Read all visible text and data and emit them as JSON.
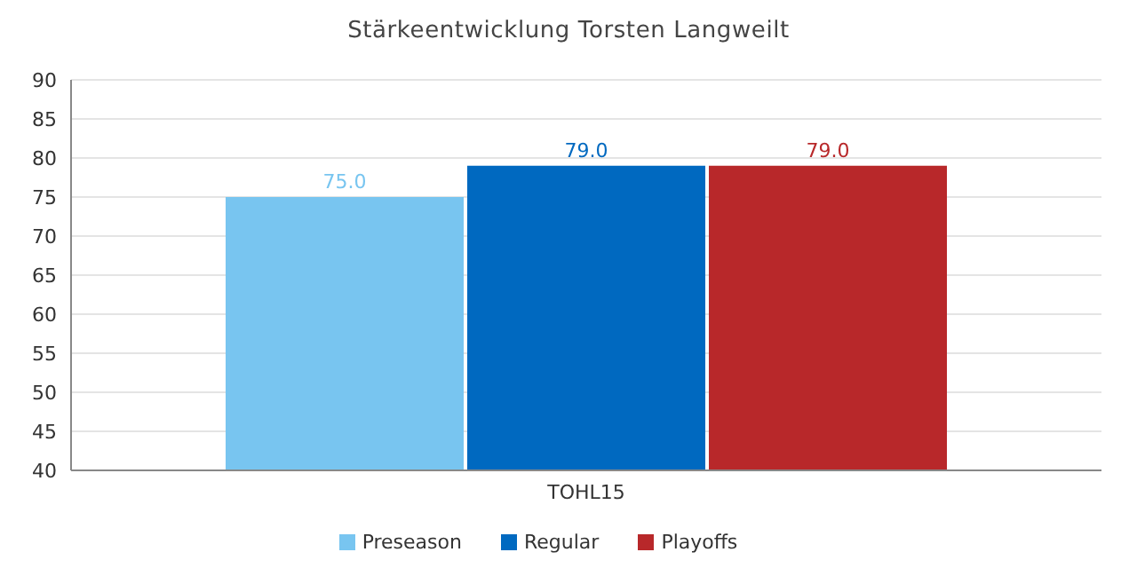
{
  "chart_data": {
    "type": "bar",
    "title": "Stärkeentwicklung Torsten Langweilt",
    "categories": [
      "TOHL15"
    ],
    "series": [
      {
        "name": "Preseason",
        "color": "#78c5f0",
        "values": [
          75
        ],
        "value_labels": [
          "75.0"
        ]
      },
      {
        "name": "Regular",
        "color": "#0069c0",
        "values": [
          79
        ],
        "value_labels": [
          "79.0"
        ]
      },
      {
        "name": "Playoffs",
        "color": "#b8282a",
        "values": [
          79
        ],
        "value_labels": [
          "79.0"
        ]
      }
    ],
    "ylim": [
      40,
      90
    ],
    "yticks": [
      40,
      45,
      50,
      55,
      60,
      65,
      70,
      75,
      80,
      85,
      90
    ],
    "grid": "y",
    "legend": "bottom"
  }
}
